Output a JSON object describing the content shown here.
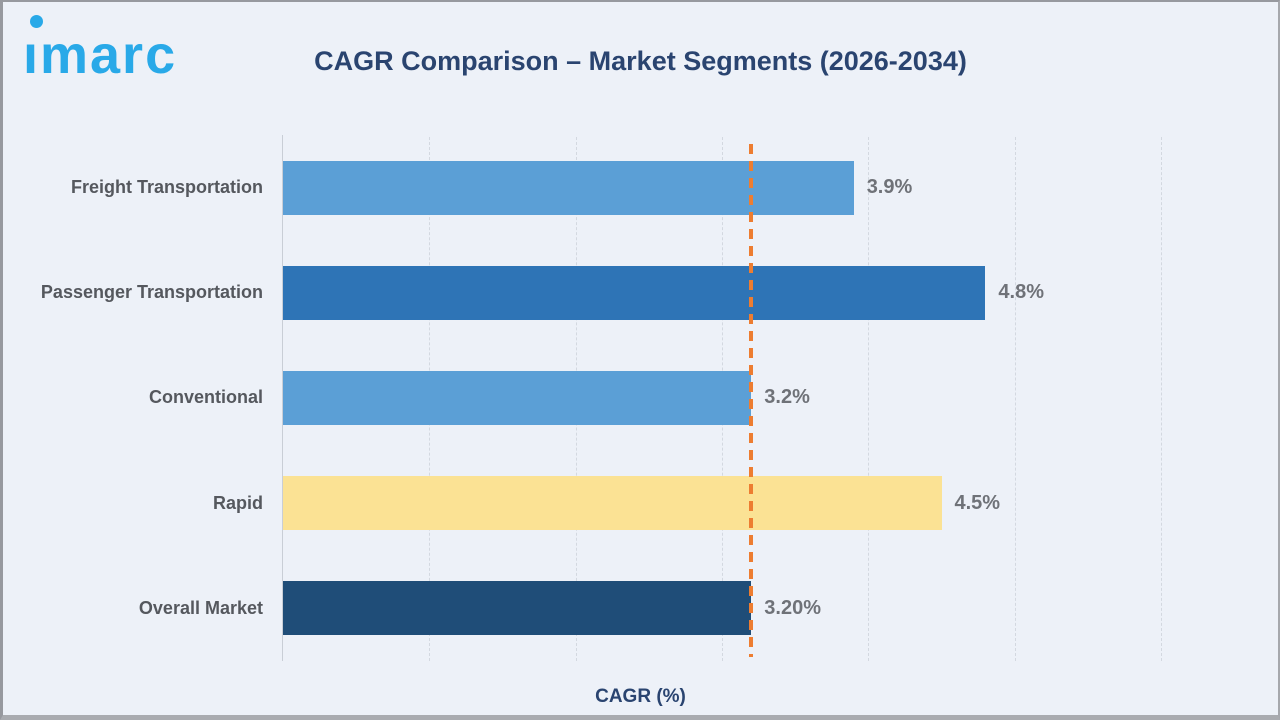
{
  "logo": {
    "text": "imarc",
    "color": "#29a9e8"
  },
  "header": {
    "title": "CAGR Comparison – Market Segments (2026-2034)"
  },
  "chart_data": {
    "type": "bar",
    "orientation": "horizontal",
    "title": "CAGR Comparison – Market Segments (2026-2034)",
    "xlabel": "CAGR (%)",
    "ylabel": "",
    "xlim": [
      0,
      6
    ],
    "xticks": [
      0,
      1,
      2,
      3,
      4,
      5,
      6
    ],
    "grid": "vertical-dashed",
    "categories": [
      "Freight Transportation",
      "Passenger Transportation",
      "Conventional",
      "Rapid",
      "Overall Market"
    ],
    "values": [
      3.9,
      4.8,
      3.2,
      4.5,
      3.2
    ],
    "value_labels": [
      "3.9%",
      "4.8%",
      "3.2%",
      "4.5%",
      "3.20%"
    ],
    "bar_colors": [
      "#5b9fd6",
      "#2e74b6",
      "#5b9fd6",
      "#fbe294",
      "#1f4d78"
    ],
    "reference_line": {
      "value": 3.2,
      "color": "#ed7d31",
      "style": "dashed"
    },
    "legend_position": "none"
  },
  "colors": {
    "background": "#edf1f8",
    "frame_border": "#9b9da3",
    "title_text": "#2a4470",
    "category_text": "#55585e",
    "value_text": "#6f7278",
    "gridline": "#d3d8e0",
    "axis_line": "#c9ced6"
  }
}
